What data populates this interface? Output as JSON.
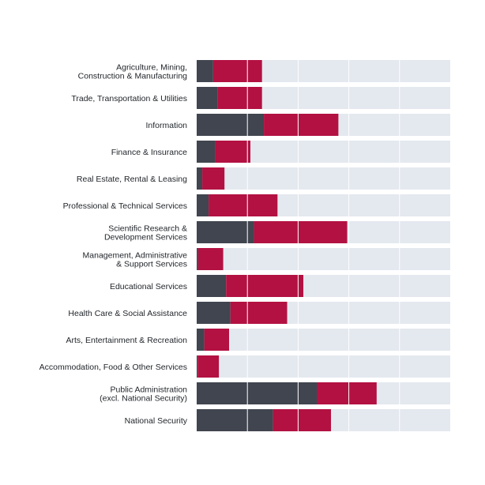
{
  "chart_data": {
    "type": "bar",
    "orientation": "horizontal",
    "stacked": true,
    "title": "",
    "xlabel": "",
    "ylabel": "",
    "xlim": [
      0,
      100
    ],
    "grid": true,
    "legend": "none",
    "categories": [
      [
        "Agriculture, Mining,",
        "Construction & Manufacturing"
      ],
      [
        "Trade, Transportation & Utilities"
      ],
      [
        "Information"
      ],
      [
        "Finance & Insurance"
      ],
      [
        "Real Estate, Rental & Leasing"
      ],
      [
        "Professional & Technical Services"
      ],
      [
        "Scientific Research &",
        "Development Services"
      ],
      [
        "Management, Administrative",
        "& Support Services"
      ],
      [
        "Educational Services"
      ],
      [
        "Health Care & Social Assistance"
      ],
      [
        "Arts, Entertainment & Recreation"
      ],
      [
        "Accommodation, Food & Other Services"
      ],
      [
        "Public Administration",
        "(excl. National Security)"
      ],
      [
        "National Security"
      ]
    ],
    "series": [
      {
        "color": "#40454f",
        "values": [
          6.5,
          8.3,
          26.5,
          7.3,
          2.2,
          4.7,
          22.6,
          0.6,
          11.6,
          13.3,
          3.0,
          0.4,
          47.5,
          30.1
        ]
      },
      {
        "color": "#b31142",
        "values": [
          19.3,
          17.5,
          29.4,
          13.9,
          8.8,
          27.2,
          36.8,
          9.9,
          30.5,
          22.4,
          9.8,
          8.4,
          23.5,
          22.9
        ]
      },
      {
        "color": "#e4e8ef",
        "values": [
          74.2,
          74.2,
          44.1,
          78.8,
          89.0,
          68.1,
          40.6,
          89.5,
          57.9,
          64.3,
          87.2,
          91.2,
          29.0,
          47.0
        ]
      }
    ]
  }
}
